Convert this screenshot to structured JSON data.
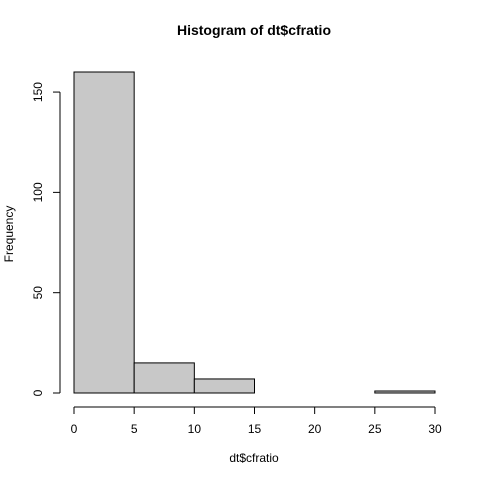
{
  "chart_data": {
    "type": "bar",
    "title": "Histogram of dt$cfratio",
    "xlabel": "dt$cfratio",
    "ylabel": "Frequency",
    "bins": [
      {
        "start": 0,
        "end": 5,
        "value": 160
      },
      {
        "start": 5,
        "end": 10,
        "value": 15
      },
      {
        "start": 10,
        "end": 15,
        "value": 7
      },
      {
        "start": 15,
        "end": 20,
        "value": 0
      },
      {
        "start": 20,
        "end": 25,
        "value": 0
      },
      {
        "start": 25,
        "end": 30,
        "value": 1
      }
    ],
    "xlim": [
      0,
      30
    ],
    "ylim": [
      0,
      160
    ],
    "x_ticks": [
      0,
      5,
      10,
      15,
      20,
      25,
      30
    ],
    "x_tick_labels": [
      "0",
      "5",
      "10",
      "15",
      "20",
      "25",
      "30"
    ],
    "y_ticks": [
      0,
      50,
      100,
      150
    ],
    "y_tick_labels": [
      "0",
      "50",
      "100",
      "150"
    ],
    "bar_fill": "#c8c8c8",
    "bar_stroke": "#000000",
    "grid": false,
    "legend": "none"
  }
}
